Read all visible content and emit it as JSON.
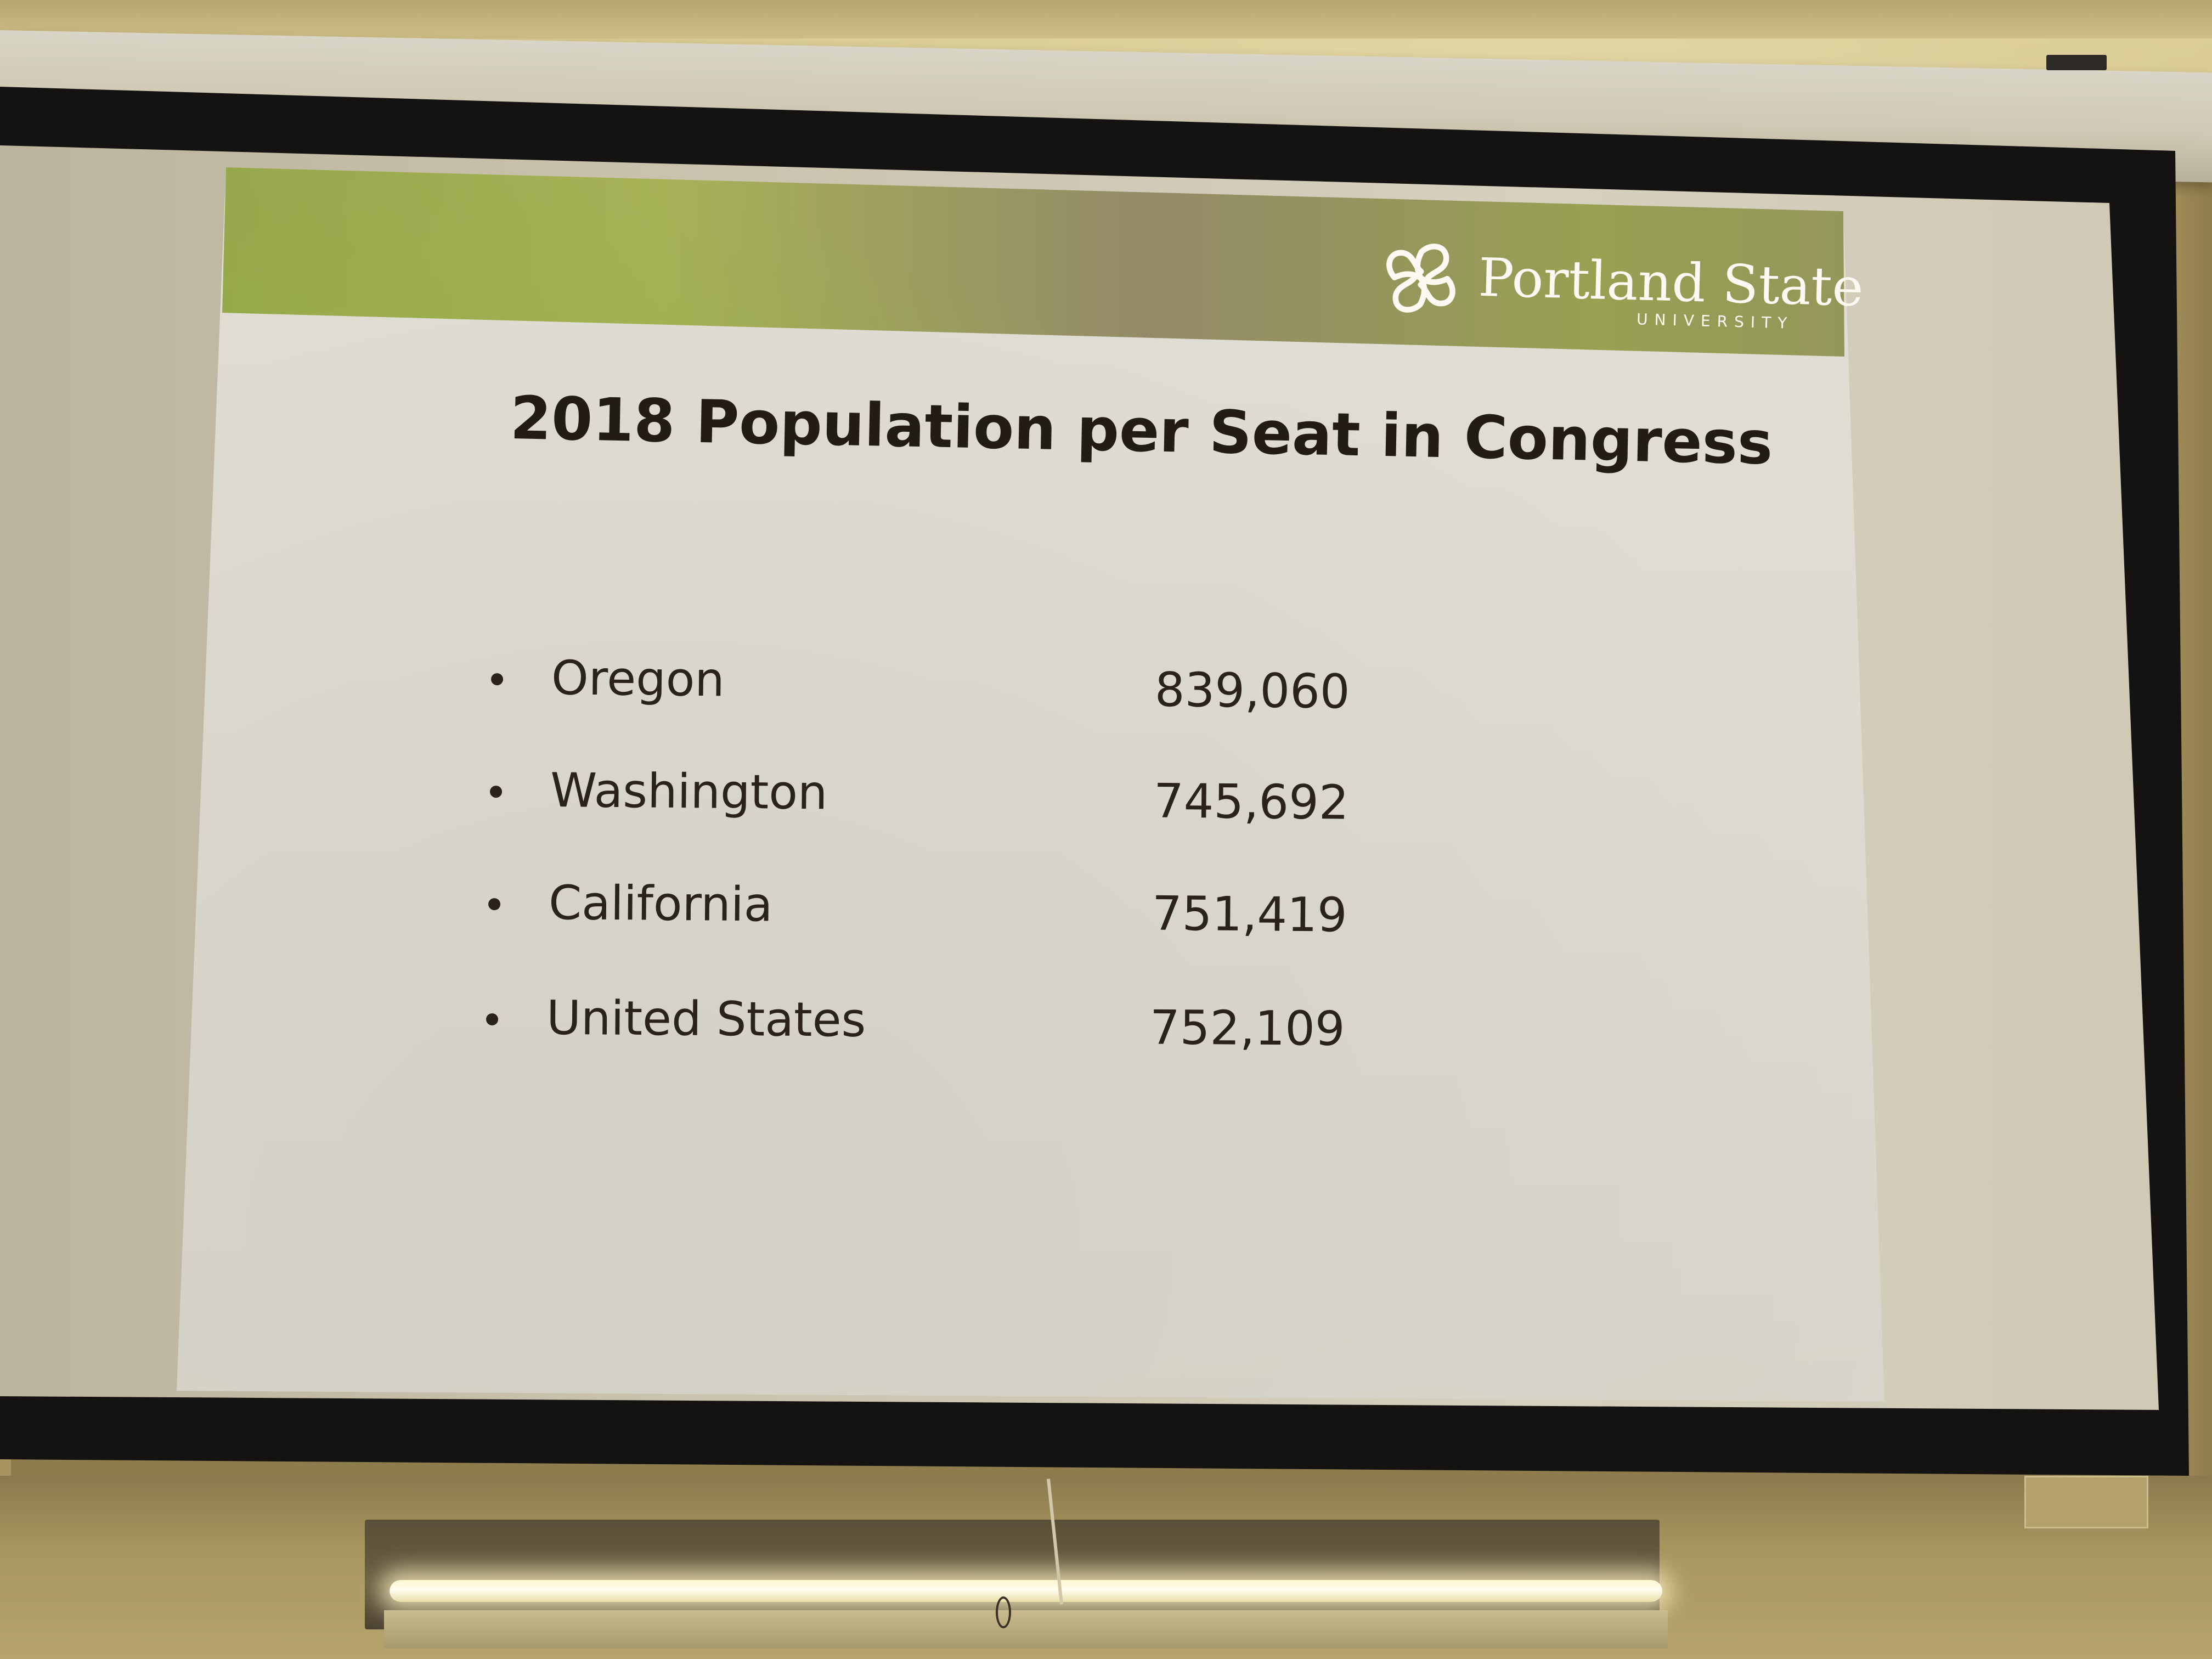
{
  "slide": {
    "title": "2018 Population per Seat in Congress",
    "logo": {
      "icon": "portland-state-knot-icon",
      "name": "Portland State",
      "subtitle": "UNIVERSITY"
    },
    "rows": [
      {
        "label": "Oregon",
        "value": "839,060"
      },
      {
        "label": "Washington",
        "value": "745,692"
      },
      {
        "label": "California",
        "value": "751,419"
      },
      {
        "label": "United States",
        "value": "752,109"
      }
    ]
  },
  "colors": {
    "slide_text": "#231c15",
    "slide_background": "#e0ded3",
    "banner_green": "#a7b257",
    "logo_text": "#fbf9f2",
    "screen_border": "#141311",
    "wall": "#c2af74"
  }
}
